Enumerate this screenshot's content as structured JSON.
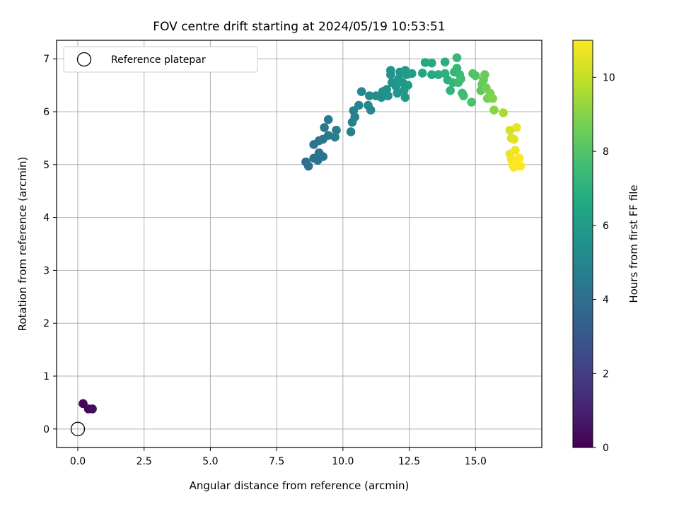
{
  "chart_data": {
    "type": "scatter",
    "title": "FOV centre drift starting at 2024/05/19 10:53:51",
    "xlabel": "Angular distance from reference (arcmin)",
    "ylabel": "Rotation from reference (arcmin)",
    "xlim": [
      -0.8,
      17.5
    ],
    "ylim": [
      -0.35,
      7.35
    ],
    "xticks": [
      0.0,
      2.5,
      5.0,
      7.5,
      10.0,
      12.5,
      15.0
    ],
    "xtick_labels": [
      "0.0",
      "2.5",
      "5.0",
      "7.5",
      "10.0",
      "12.5",
      "15.0"
    ],
    "yticks": [
      0,
      1,
      2,
      3,
      4,
      5,
      6,
      7
    ],
    "ytick_labels": [
      "0",
      "1",
      "2",
      "3",
      "4",
      "5",
      "6",
      "7"
    ],
    "grid": true,
    "legend": {
      "position": "top-left",
      "entries": [
        "Reference platepar"
      ]
    },
    "reference_point": {
      "x": 0.0,
      "y": 0.0
    },
    "colorbar": {
      "label": "Hours from first FF file",
      "range": [
        0,
        11
      ],
      "ticks": [
        0,
        2,
        4,
        6,
        8,
        10
      ],
      "colormap": "viridis"
    },
    "points": [
      {
        "x": 0.2,
        "y": 0.48,
        "t": 0.1
      },
      {
        "x": 0.4,
        "y": 0.38,
        "t": 0.2
      },
      {
        "x": 0.55,
        "y": 0.38,
        "t": 0.3
      },
      {
        "x": 8.6,
        "y": 5.05,
        "t": 4.0
      },
      {
        "x": 8.7,
        "y": 4.97,
        "t": 4.0
      },
      {
        "x": 8.9,
        "y": 5.12,
        "t": 4.1
      },
      {
        "x": 9.05,
        "y": 5.08,
        "t": 4.1
      },
      {
        "x": 9.1,
        "y": 5.22,
        "t": 4.2
      },
      {
        "x": 9.25,
        "y": 5.15,
        "t": 4.2
      },
      {
        "x": 8.9,
        "y": 5.38,
        "t": 4.3
      },
      {
        "x": 9.1,
        "y": 5.45,
        "t": 4.3
      },
      {
        "x": 9.25,
        "y": 5.48,
        "t": 4.4
      },
      {
        "x": 9.3,
        "y": 5.7,
        "t": 4.4
      },
      {
        "x": 9.45,
        "y": 5.85,
        "t": 4.5
      },
      {
        "x": 9.45,
        "y": 5.55,
        "t": 4.5
      },
      {
        "x": 9.7,
        "y": 5.52,
        "t": 4.6
      },
      {
        "x": 9.75,
        "y": 5.65,
        "t": 4.6
      },
      {
        "x": 10.3,
        "y": 5.62,
        "t": 4.8
      },
      {
        "x": 10.35,
        "y": 5.8,
        "t": 4.8
      },
      {
        "x": 10.45,
        "y": 5.9,
        "t": 4.9
      },
      {
        "x": 10.4,
        "y": 6.02,
        "t": 4.9
      },
      {
        "x": 10.6,
        "y": 6.12,
        "t": 5.0
      },
      {
        "x": 10.7,
        "y": 6.38,
        "t": 5.0
      },
      {
        "x": 10.95,
        "y": 6.12,
        "t": 5.1
      },
      {
        "x": 11.05,
        "y": 6.03,
        "t": 5.1
      },
      {
        "x": 11.0,
        "y": 6.3,
        "t": 5.2
      },
      {
        "x": 11.25,
        "y": 6.3,
        "t": 5.3
      },
      {
        "x": 11.45,
        "y": 6.27,
        "t": 5.4
      },
      {
        "x": 11.5,
        "y": 6.38,
        "t": 5.4
      },
      {
        "x": 11.65,
        "y": 6.42,
        "t": 5.5
      },
      {
        "x": 11.7,
        "y": 6.3,
        "t": 5.5
      },
      {
        "x": 11.85,
        "y": 6.55,
        "t": 5.6
      },
      {
        "x": 11.8,
        "y": 6.7,
        "t": 5.6
      },
      {
        "x": 11.8,
        "y": 6.78,
        "t": 5.7
      },
      {
        "x": 12.0,
        "y": 6.48,
        "t": 5.7
      },
      {
        "x": 12.05,
        "y": 6.35,
        "t": 5.7
      },
      {
        "x": 12.1,
        "y": 6.62,
        "t": 5.8
      },
      {
        "x": 12.15,
        "y": 6.75,
        "t": 5.8
      },
      {
        "x": 12.25,
        "y": 6.55,
        "t": 5.9
      },
      {
        "x": 12.3,
        "y": 6.4,
        "t": 5.9
      },
      {
        "x": 12.35,
        "y": 6.27,
        "t": 5.9
      },
      {
        "x": 12.4,
        "y": 6.7,
        "t": 6.0
      },
      {
        "x": 12.45,
        "y": 6.5,
        "t": 6.0
      },
      {
        "x": 12.35,
        "y": 6.78,
        "t": 6.1
      },
      {
        "x": 12.6,
        "y": 6.72,
        "t": 6.1
      },
      {
        "x": 13.0,
        "y": 6.73,
        "t": 6.5
      },
      {
        "x": 13.1,
        "y": 6.93,
        "t": 6.6
      },
      {
        "x": 13.35,
        "y": 6.92,
        "t": 6.7
      },
      {
        "x": 13.35,
        "y": 6.7,
        "t": 6.7
      },
      {
        "x": 13.6,
        "y": 6.7,
        "t": 6.8
      },
      {
        "x": 13.85,
        "y": 6.94,
        "t": 6.9
      },
      {
        "x": 13.85,
        "y": 6.72,
        "t": 7.0
      },
      {
        "x": 13.95,
        "y": 6.6,
        "t": 7.0
      },
      {
        "x": 14.05,
        "y": 6.4,
        "t": 7.1
      },
      {
        "x": 14.15,
        "y": 6.55,
        "t": 7.2
      },
      {
        "x": 14.2,
        "y": 6.75,
        "t": 7.2
      },
      {
        "x": 14.3,
        "y": 7.02,
        "t": 7.3
      },
      {
        "x": 14.3,
        "y": 6.82,
        "t": 7.3
      },
      {
        "x": 14.35,
        "y": 6.55,
        "t": 7.4
      },
      {
        "x": 14.4,
        "y": 6.7,
        "t": 7.4
      },
      {
        "x": 14.45,
        "y": 6.62,
        "t": 7.5
      },
      {
        "x": 14.5,
        "y": 6.35,
        "t": 7.5
      },
      {
        "x": 14.55,
        "y": 6.3,
        "t": 7.6
      },
      {
        "x": 14.85,
        "y": 6.18,
        "t": 7.8
      },
      {
        "x": 14.9,
        "y": 6.72,
        "t": 7.9
      },
      {
        "x": 15.0,
        "y": 6.68,
        "t": 8.0
      },
      {
        "x": 15.2,
        "y": 6.4,
        "t": 8.2
      },
      {
        "x": 15.25,
        "y": 6.52,
        "t": 8.3
      },
      {
        "x": 15.3,
        "y": 6.6,
        "t": 8.4
      },
      {
        "x": 15.35,
        "y": 6.7,
        "t": 8.5
      },
      {
        "x": 15.4,
        "y": 6.45,
        "t": 8.6
      },
      {
        "x": 15.45,
        "y": 6.25,
        "t": 8.7
      },
      {
        "x": 15.55,
        "y": 6.35,
        "t": 8.8
      },
      {
        "x": 15.65,
        "y": 6.25,
        "t": 8.9
      },
      {
        "x": 15.7,
        "y": 6.03,
        "t": 9.0
      },
      {
        "x": 16.05,
        "y": 5.98,
        "t": 9.6
      },
      {
        "x": 16.3,
        "y": 5.65,
        "t": 10.3
      },
      {
        "x": 16.35,
        "y": 5.5,
        "t": 10.4
      },
      {
        "x": 16.45,
        "y": 5.48,
        "t": 10.5
      },
      {
        "x": 16.55,
        "y": 5.7,
        "t": 10.6
      },
      {
        "x": 16.3,
        "y": 5.2,
        "t": 10.7
      },
      {
        "x": 16.35,
        "y": 5.1,
        "t": 10.8
      },
      {
        "x": 16.4,
        "y": 5.0,
        "t": 10.9
      },
      {
        "x": 16.45,
        "y": 4.95,
        "t": 11.0
      },
      {
        "x": 16.5,
        "y": 5.27,
        "t": 10.8
      },
      {
        "x": 16.55,
        "y": 5.05,
        "t": 10.9
      },
      {
        "x": 16.6,
        "y": 5.0,
        "t": 11.0
      },
      {
        "x": 16.65,
        "y": 5.12,
        "t": 11.0
      },
      {
        "x": 16.7,
        "y": 4.97,
        "t": 11.0
      }
    ]
  }
}
